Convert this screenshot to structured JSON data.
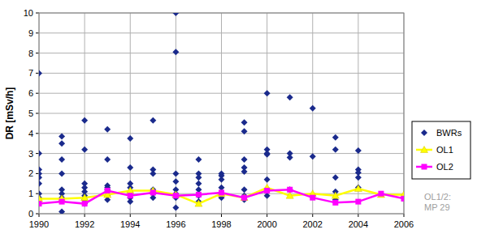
{
  "chart_data": {
    "type": "scatter",
    "y_label": "DR [mSv/h]",
    "annotations": [
      "OL1/2:",
      "MP 29"
    ],
    "xlim": [
      1990,
      2006
    ],
    "xticks": [
      1990,
      1992,
      1994,
      1996,
      1998,
      2000,
      2002,
      2004,
      2006
    ],
    "ylim": [
      0,
      10
    ],
    "yticks": [
      0,
      1,
      2,
      3,
      4,
      5,
      6,
      7,
      8,
      9,
      10
    ],
    "grid": true,
    "legend": "right",
    "series": [
      {
        "name": "BWRs",
        "type": "scatter",
        "color": "#1a2a8c",
        "marker": "diamond",
        "x": [
          1990,
          1990,
          1990,
          1990,
          1990,
          1990,
          1990,
          1990,
          1991,
          1991,
          1991,
          1991,
          1991,
          1991,
          1991,
          1991,
          1992,
          1992,
          1992,
          1992,
          1992,
          1992,
          1992,
          1992,
          1993,
          1993,
          1993,
          1993,
          1993,
          1993,
          1993,
          1994,
          1994,
          1994,
          1994,
          1994,
          1994,
          1994,
          1995,
          1995,
          1995,
          1995,
          1995,
          1995,
          1996,
          1996,
          1996,
          1996,
          1996,
          1996,
          1996,
          1996,
          1997,
          1997,
          1997,
          1997,
          1997,
          1997,
          1997,
          1998,
          1998,
          1998,
          1998,
          1998,
          1998,
          1999,
          1999,
          1999,
          1999,
          1999,
          1999,
          1999,
          1999,
          2000,
          2000,
          2000,
          2000,
          2000,
          2000,
          2000,
          2001,
          2001,
          2001,
          2001,
          2002,
          2002,
          2002,
          2003,
          2003,
          2003,
          2003,
          2003,
          2004,
          2004,
          2004,
          2004,
          2004
        ],
        "values": [
          7.0,
          3.0,
          2.2,
          2.0,
          1.8,
          1.5,
          1.0,
          0.8,
          3.85,
          3.5,
          2.7,
          2.0,
          1.2,
          1.0,
          0.8,
          0.1,
          4.65,
          3.2,
          1.5,
          1.3,
          1.1,
          0.9,
          0.7,
          0.5,
          4.2,
          2.7,
          1.4,
          1.3,
          1.2,
          0.9,
          0.7,
          3.75,
          2.3,
          1.5,
          1.3,
          1.1,
          0.8,
          0.6,
          4.65,
          2.2,
          2.0,
          1.2,
          1.0,
          0.8,
          10.0,
          8.05,
          2.0,
          1.6,
          1.2,
          1.0,
          0.8,
          0.3,
          2.7,
          2.0,
          1.8,
          1.5,
          1.2,
          0.9,
          0.6,
          2.0,
          1.9,
          1.7,
          1.3,
          1.0,
          0.8,
          4.55,
          4.1,
          2.7,
          2.3,
          2.1,
          1.2,
          0.9,
          0.7,
          6.0,
          3.2,
          3.0,
          2.95,
          1.7,
          1.2,
          0.9,
          5.8,
          3.0,
          2.8,
          1.2,
          5.25,
          2.85,
          0.9,
          3.8,
          3.2,
          1.8,
          1.1,
          0.7,
          3.15,
          2.2,
          2.05,
          1.8,
          1.3
        ]
      },
      {
        "name": "OL1",
        "type": "line",
        "color": "#ffff00",
        "marker": "triangle",
        "line_style": "solid",
        "x": [
          1990,
          1991,
          1992,
          1993,
          1994,
          1995,
          1996,
          1997,
          1998,
          1999,
          2000,
          2001,
          2002,
          2003,
          2004,
          2005,
          2006
        ],
        "values": [
          0.75,
          0.75,
          0.8,
          0.95,
          1.15,
          1.15,
          0.95,
          0.5,
          1.0,
          0.8,
          1.3,
          0.9,
          1.0,
          0.9,
          1.25,
          0.95,
          0.95
        ]
      },
      {
        "name": "OL2",
        "type": "line",
        "color": "#ff00ff",
        "marker": "square",
        "line_style": "solid",
        "x": [
          1990,
          1991,
          1992,
          1993,
          1994,
          1995,
          1996,
          1997,
          1998,
          1999,
          2000,
          2001,
          2002,
          2003,
          2004,
          2005,
          2006
        ],
        "values": [
          0.5,
          0.6,
          0.5,
          1.15,
          0.9,
          1.05,
          0.9,
          0.95,
          1.05,
          0.8,
          1.15,
          1.2,
          0.8,
          0.55,
          0.6,
          1.0,
          0.75
        ]
      }
    ]
  }
}
